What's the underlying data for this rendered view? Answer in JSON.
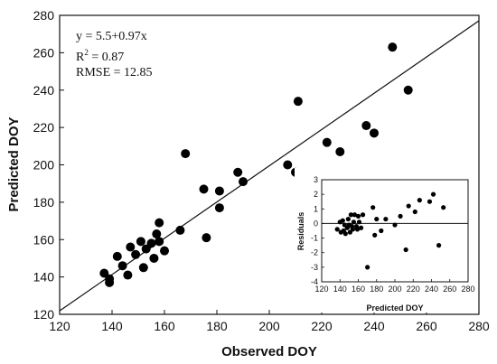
{
  "chart_data": [
    {
      "type": "scatter",
      "xlabel": "Observed DOY",
      "ylabel": "Predicted DOY",
      "xlim": [
        120,
        280
      ],
      "ylim": [
        120,
        280
      ],
      "xticks": [
        "120",
        "140",
        "160",
        "180",
        "200",
        "220",
        "240",
        "260",
        "280"
      ],
      "yticks": [
        "120",
        "140",
        "160",
        "180",
        "200",
        "220",
        "240",
        "260",
        "280"
      ],
      "grid": false,
      "annotations": {
        "equation": "y = 5.5+0.97x",
        "r2_prefix": "R",
        "r2_sup": "2",
        "r2_value": " = 0.87",
        "rmse": "RMSE = 12.85"
      },
      "fit_line": {
        "intercept": 5.5,
        "slope": 0.97
      },
      "points": [
        {
          "x": 137,
          "y": 142
        },
        {
          "x": 139,
          "y": 137
        },
        {
          "x": 139,
          "y": 139
        },
        {
          "x": 142,
          "y": 151
        },
        {
          "x": 144,
          "y": 146
        },
        {
          "x": 146,
          "y": 141
        },
        {
          "x": 147,
          "y": 156
        },
        {
          "x": 149,
          "y": 152
        },
        {
          "x": 151,
          "y": 159
        },
        {
          "x": 152,
          "y": 145
        },
        {
          "x": 153,
          "y": 155
        },
        {
          "x": 155,
          "y": 158
        },
        {
          "x": 156,
          "y": 150
        },
        {
          "x": 157,
          "y": 163
        },
        {
          "x": 158,
          "y": 169
        },
        {
          "x": 158,
          "y": 159
        },
        {
          "x": 160,
          "y": 154
        },
        {
          "x": 166,
          "y": 165
        },
        {
          "x": 168,
          "y": 206
        },
        {
          "x": 175,
          "y": 187
        },
        {
          "x": 176,
          "y": 161
        },
        {
          "x": 181,
          "y": 186
        },
        {
          "x": 181,
          "y": 177
        },
        {
          "x": 188,
          "y": 196
        },
        {
          "x": 190,
          "y": 191
        },
        {
          "x": 207,
          "y": 200
        },
        {
          "x": 210,
          "y": 196
        },
        {
          "x": 211,
          "y": 234
        },
        {
          "x": 222,
          "y": 212
        },
        {
          "x": 227,
          "y": 207
        },
        {
          "x": 237,
          "y": 221
        },
        {
          "x": 240,
          "y": 217
        },
        {
          "x": 247,
          "y": 263
        },
        {
          "x": 253,
          "y": 240
        }
      ]
    },
    {
      "type": "scatter",
      "xlabel": "Predicted DOY",
      "ylabel": "Residuals",
      "xlim": [
        120,
        280
      ],
      "ylim": [
        -4,
        3
      ],
      "xticks": [
        "120",
        "140",
        "160",
        "180",
        "200",
        "220",
        "240",
        "260",
        "280"
      ],
      "yticks": [
        "-4",
        "-3",
        "-2",
        "-1",
        "0",
        "1",
        "2",
        "3"
      ],
      "zero_line": 0,
      "grid": false,
      "points": [
        {
          "x": 137,
          "y": -0.4
        },
        {
          "x": 140,
          "y": 0.1
        },
        {
          "x": 141,
          "y": -0.6
        },
        {
          "x": 143,
          "y": 0.2
        },
        {
          "x": 144,
          "y": -0.5
        },
        {
          "x": 145,
          "y": -0.1
        },
        {
          "x": 146,
          "y": -0.7
        },
        {
          "x": 148,
          "y": -0.3
        },
        {
          "x": 149,
          "y": 0.3
        },
        {
          "x": 150,
          "y": -0.1
        },
        {
          "x": 151,
          "y": -0.6
        },
        {
          "x": 152,
          "y": 0.6
        },
        {
          "x": 153,
          "y": -0.2
        },
        {
          "x": 154,
          "y": -0.4
        },
        {
          "x": 155,
          "y": 0.1
        },
        {
          "x": 156,
          "y": 0.6
        },
        {
          "x": 158,
          "y": -0.2
        },
        {
          "x": 159,
          "y": -0.4
        },
        {
          "x": 160,
          "y": 0.5
        },
        {
          "x": 161,
          "y": 0.1
        },
        {
          "x": 163,
          "y": -0.3
        },
        {
          "x": 165,
          "y": 0.6
        },
        {
          "x": 170,
          "y": -3.0
        },
        {
          "x": 176,
          "y": 1.1
        },
        {
          "x": 178,
          "y": -0.8
        },
        {
          "x": 180,
          "y": 0.3
        },
        {
          "x": 185,
          "y": -0.5
        },
        {
          "x": 190,
          "y": 0.3
        },
        {
          "x": 200,
          "y": -0.1
        },
        {
          "x": 206,
          "y": 0.5
        },
        {
          "x": 212,
          "y": -1.8
        },
        {
          "x": 215,
          "y": 1.2
        },
        {
          "x": 222,
          "y": 0.8
        },
        {
          "x": 227,
          "y": 1.6
        },
        {
          "x": 238,
          "y": 1.5
        },
        {
          "x": 242,
          "y": 2.0
        },
        {
          "x": 248,
          "y": -1.5
        },
        {
          "x": 253,
          "y": 1.1
        }
      ]
    }
  ]
}
